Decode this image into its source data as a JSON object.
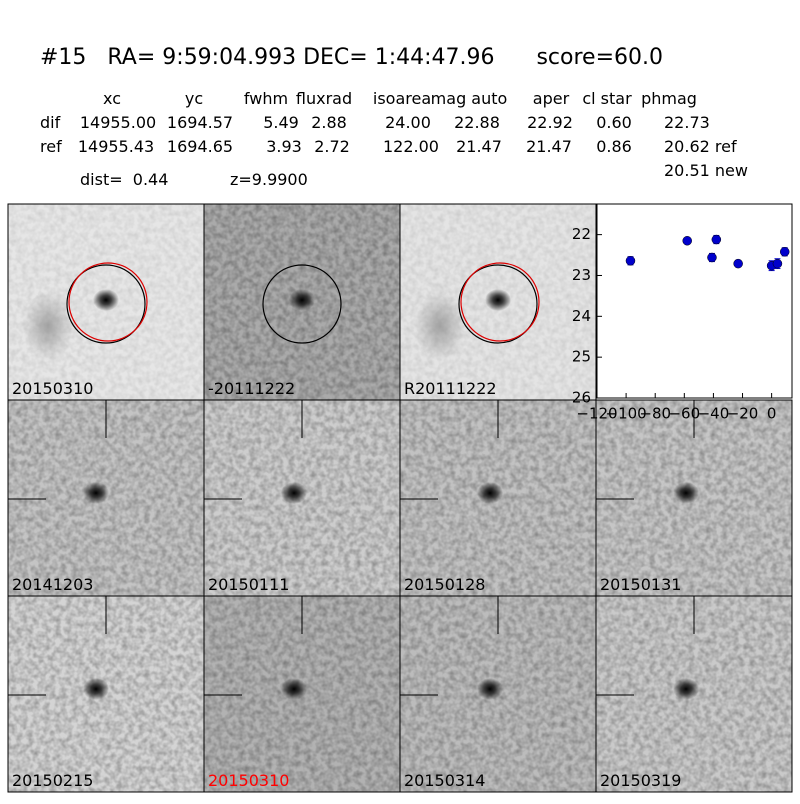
{
  "header": {
    "title": "#15   RA= 9:59:04.993 DEC= 1:44:47.96      score=60.0"
  },
  "table": {
    "columns": [
      "xc",
      "yc",
      "fwhm",
      "fluxrad",
      "isoarea",
      "mag auto",
      "aper",
      "cl star",
      "phmag"
    ],
    "rows": [
      [
        "dif",
        "14955.00",
        "1694.57",
        "5.49",
        "2.88",
        "24.00",
        "22.88",
        "22.92",
        "0.60",
        "22.73"
      ],
      [
        "ref",
        "14955.43",
        "1694.65",
        "3.93",
        "2.72",
        "122.00",
        "21.47",
        "21.47",
        "0.86",
        "20.62 ref"
      ]
    ],
    "extra": "20.51 new"
  },
  "dist": "dist=  0.44",
  "z": "z=9.9900",
  "stamps": [
    {
      "label": "20150310"
    },
    {
      "label": "-20111222"
    },
    {
      "label": "R20111222"
    },
    {
      "label": "20141203"
    },
    {
      "label": "20150111"
    },
    {
      "label": "20150128"
    },
    {
      "label": "20150131"
    },
    {
      "label": "20150215"
    },
    {
      "label": "20150310",
      "label_color": "red"
    },
    {
      "label": "20150314"
    },
    {
      "label": "20150319"
    }
  ],
  "chart_data": {
    "type": "scatter",
    "x": [
      -97,
      -58,
      -41,
      -38,
      -23,
      0,
      4,
      9
    ],
    "values": [
      22.64,
      22.15,
      22.56,
      22.12,
      22.71,
      22.76,
      22.71,
      22.42
    ],
    "errors": [
      0.1,
      0.06,
      0.1,
      0.1,
      0.08,
      0.12,
      0.12,
      0.1
    ],
    "color": "#0000cc",
    "xlim": [
      -120,
      14
    ],
    "ylim": [
      26,
      21.25
    ],
    "xticks": [
      {
        "value": -120,
        "label": "−120"
      },
      {
        "value": -100,
        "label": "−100"
      },
      {
        "value": -80,
        "label": "−80"
      },
      {
        "value": -60,
        "label": "−60"
      },
      {
        "value": -40,
        "label": "−40"
      },
      {
        "value": -20,
        "label": "−20"
      },
      0
    ],
    "yticks": [
      22,
      23,
      24,
      25,
      26
    ]
  }
}
